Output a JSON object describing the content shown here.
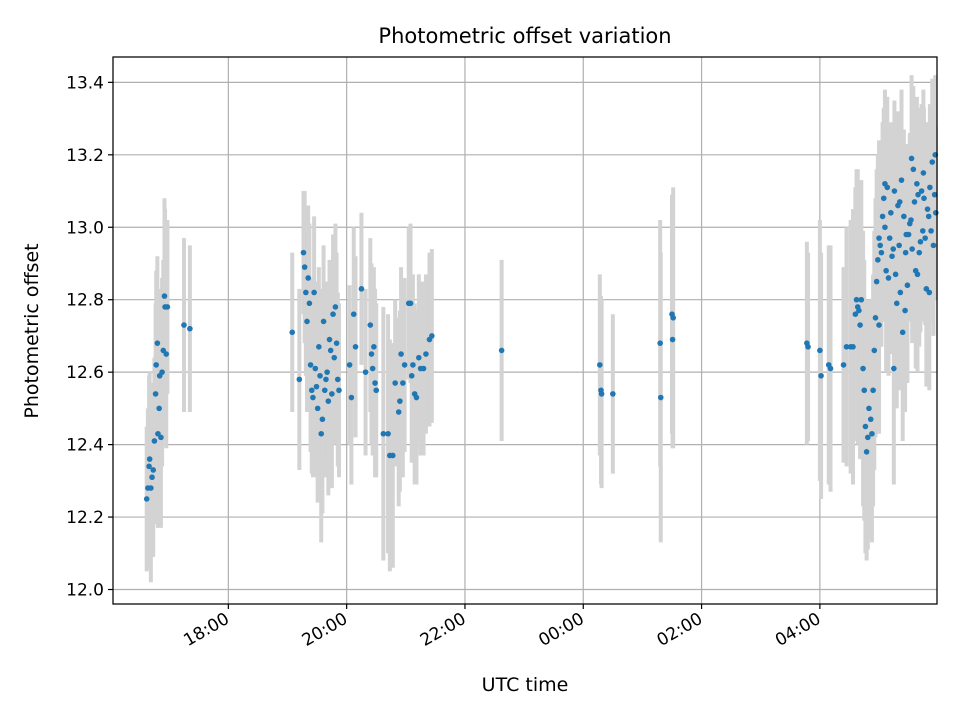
{
  "chart_data": {
    "type": "scatter",
    "title": "Photometric offset variation",
    "xlabel": "UTC time",
    "ylabel": "Photometric offset",
    "x_unit": "UTC hours (values after 24:00 continue into the next day)",
    "xlim": [
      16.05,
      29.98
    ],
    "ylim": [
      11.96,
      13.47
    ],
    "x_ticks": [
      {
        "value": 18,
        "label": "18:00"
      },
      {
        "value": 20,
        "label": "20:00"
      },
      {
        "value": 22,
        "label": "22:00"
      },
      {
        "value": 24,
        "label": "00:00"
      },
      {
        "value": 26,
        "label": "02:00"
      },
      {
        "value": 28,
        "label": "04:00"
      }
    ],
    "y_ticks": [
      {
        "value": 12.0,
        "label": "12.0"
      },
      {
        "value": 12.2,
        "label": "12.2"
      },
      {
        "value": 12.4,
        "label": "12.4"
      },
      {
        "value": 12.6,
        "label": "12.6"
      },
      {
        "value": 12.8,
        "label": "12.8"
      },
      {
        "value": 13.0,
        "label": "13.0"
      },
      {
        "value": 13.2,
        "label": "13.2"
      },
      {
        "value": 13.4,
        "label": "13.4"
      }
    ],
    "grid": true,
    "point_color": "#1f77b4",
    "errorbar_color": "#d3d3d3",
    "points": [
      {
        "x": 16.62,
        "y": 12.25,
        "err": 0.2
      },
      {
        "x": 16.64,
        "y": 12.28,
        "err": 0.22
      },
      {
        "x": 16.66,
        "y": 12.34,
        "err": 0.25
      },
      {
        "x": 16.67,
        "y": 12.36,
        "err": 0.24
      },
      {
        "x": 16.69,
        "y": 12.28,
        "err": 0.26
      },
      {
        "x": 16.71,
        "y": 12.31,
        "err": 0.22
      },
      {
        "x": 16.73,
        "y": 12.33,
        "err": 0.24
      },
      {
        "x": 16.75,
        "y": 12.41,
        "err": 0.23
      },
      {
        "x": 16.77,
        "y": 12.54,
        "err": 0.25
      },
      {
        "x": 16.78,
        "y": 12.62,
        "err": 0.26
      },
      {
        "x": 16.8,
        "y": 12.68,
        "err": 0.24
      },
      {
        "x": 16.81,
        "y": 12.43,
        "err": 0.26
      },
      {
        "x": 16.83,
        "y": 12.5,
        "err": 0.25
      },
      {
        "x": 16.84,
        "y": 12.59,
        "err": 0.24
      },
      {
        "x": 16.86,
        "y": 12.42,
        "err": 0.25
      },
      {
        "x": 16.88,
        "y": 12.6,
        "err": 0.26
      },
      {
        "x": 16.9,
        "y": 12.66,
        "err": 0.25
      },
      {
        "x": 16.92,
        "y": 12.81,
        "err": 0.27
      },
      {
        "x": 16.93,
        "y": 12.78,
        "err": 0.27
      },
      {
        "x": 16.95,
        "y": 12.65,
        "err": 0.26
      },
      {
        "x": 16.97,
        "y": 12.78,
        "err": 0.24
      },
      {
        "x": 17.25,
        "y": 12.73,
        "err": 0.24
      },
      {
        "x": 17.35,
        "y": 12.72,
        "err": 0.23
      },
      {
        "x": 19.08,
        "y": 12.71,
        "err": 0.22
      },
      {
        "x": 19.2,
        "y": 12.58,
        "err": 0.25
      },
      {
        "x": 19.27,
        "y": 12.93,
        "err": 0.17
      },
      {
        "x": 19.29,
        "y": 12.89,
        "err": 0.21
      },
      {
        "x": 19.31,
        "y": 12.82,
        "err": 0.23
      },
      {
        "x": 19.33,
        "y": 12.74,
        "err": 0.25
      },
      {
        "x": 19.35,
        "y": 12.86,
        "err": 0.2
      },
      {
        "x": 19.37,
        "y": 12.79,
        "err": 0.22
      },
      {
        "x": 19.39,
        "y": 12.62,
        "err": 0.24
      },
      {
        "x": 19.41,
        "y": 12.55,
        "err": 0.23
      },
      {
        "x": 19.43,
        "y": 12.53,
        "err": 0.22
      },
      {
        "x": 19.45,
        "y": 12.82,
        "err": 0.21
      },
      {
        "x": 19.47,
        "y": 12.61,
        "err": 0.24
      },
      {
        "x": 19.49,
        "y": 12.56,
        "err": 0.25
      },
      {
        "x": 19.51,
        "y": 12.5,
        "err": 0.26
      },
      {
        "x": 19.53,
        "y": 12.67,
        "err": 0.22
      },
      {
        "x": 19.55,
        "y": 12.59,
        "err": 0.24
      },
      {
        "x": 19.57,
        "y": 12.43,
        "err": 0.3
      },
      {
        "x": 19.59,
        "y": 12.47,
        "err": 0.26
      },
      {
        "x": 19.61,
        "y": 12.74,
        "err": 0.21
      },
      {
        "x": 19.63,
        "y": 12.55,
        "err": 0.24
      },
      {
        "x": 19.65,
        "y": 12.58,
        "err": 0.23
      },
      {
        "x": 19.67,
        "y": 12.6,
        "err": 0.25
      },
      {
        "x": 19.69,
        "y": 12.52,
        "err": 0.26
      },
      {
        "x": 19.71,
        "y": 12.69,
        "err": 0.22
      },
      {
        "x": 19.73,
        "y": 12.66,
        "err": 0.24
      },
      {
        "x": 19.75,
        "y": 12.54,
        "err": 0.26
      },
      {
        "x": 19.77,
        "y": 12.76,
        "err": 0.22
      },
      {
        "x": 19.79,
        "y": 12.64,
        "err": 0.24
      },
      {
        "x": 19.81,
        "y": 12.78,
        "err": 0.23
      },
      {
        "x": 19.83,
        "y": 12.68,
        "err": 0.25
      },
      {
        "x": 19.85,
        "y": 12.58,
        "err": 0.24
      },
      {
        "x": 19.87,
        "y": 12.55,
        "err": 0.24
      },
      {
        "x": 20.05,
        "y": 12.62,
        "err": 0.22
      },
      {
        "x": 20.08,
        "y": 12.53,
        "err": 0.24
      },
      {
        "x": 20.12,
        "y": 12.76,
        "err": 0.24
      },
      {
        "x": 20.15,
        "y": 12.67,
        "err": 0.25
      },
      {
        "x": 20.25,
        "y": 12.83,
        "err": 0.21
      },
      {
        "x": 20.32,
        "y": 12.6,
        "err": 0.23
      },
      {
        "x": 20.4,
        "y": 12.73,
        "err": 0.24
      },
      {
        "x": 20.42,
        "y": 12.65,
        "err": 0.25
      },
      {
        "x": 20.44,
        "y": 12.61,
        "err": 0.24
      },
      {
        "x": 20.46,
        "y": 12.67,
        "err": 0.22
      },
      {
        "x": 20.48,
        "y": 12.57,
        "err": 0.26
      },
      {
        "x": 20.5,
        "y": 12.55,
        "err": 0.24
      },
      {
        "x": 20.62,
        "y": 12.43,
        "err": 0.35
      },
      {
        "x": 20.7,
        "y": 12.43,
        "err": 0.33
      },
      {
        "x": 20.73,
        "y": 12.37,
        "err": 0.32
      },
      {
        "x": 20.78,
        "y": 12.37,
        "err": 0.31
      },
      {
        "x": 20.82,
        "y": 12.57,
        "err": 0.23
      },
      {
        "x": 20.88,
        "y": 12.49,
        "err": 0.26
      },
      {
        "x": 20.9,
        "y": 12.52,
        "err": 0.25
      },
      {
        "x": 20.92,
        "y": 12.65,
        "err": 0.24
      },
      {
        "x": 20.95,
        "y": 12.57,
        "err": 0.26
      },
      {
        "x": 20.98,
        "y": 12.62,
        "err": 0.24
      },
      {
        "x": 21.05,
        "y": 12.79,
        "err": 0.21
      },
      {
        "x": 21.08,
        "y": 12.79,
        "err": 0.22
      },
      {
        "x": 21.1,
        "y": 12.59,
        "err": 0.24
      },
      {
        "x": 21.12,
        "y": 12.62,
        "err": 0.25
      },
      {
        "x": 21.15,
        "y": 12.54,
        "err": 0.25
      },
      {
        "x": 21.18,
        "y": 12.53,
        "err": 0.24
      },
      {
        "x": 21.22,
        "y": 12.64,
        "err": 0.23
      },
      {
        "x": 21.25,
        "y": 12.61,
        "err": 0.24
      },
      {
        "x": 21.3,
        "y": 12.61,
        "err": 0.24
      },
      {
        "x": 21.34,
        "y": 12.65,
        "err": 0.22
      },
      {
        "x": 21.4,
        "y": 12.69,
        "err": 0.24
      },
      {
        "x": 21.44,
        "y": 12.7,
        "err": 0.24
      },
      {
        "x": 22.62,
        "y": 12.66,
        "err": 0.25
      },
      {
        "x": 24.28,
        "y": 12.62,
        "err": 0.25
      },
      {
        "x": 24.3,
        "y": 12.55,
        "err": 0.26
      },
      {
        "x": 24.31,
        "y": 12.54,
        "err": 0.26
      },
      {
        "x": 24.5,
        "y": 12.54,
        "err": 0.22
      },
      {
        "x": 25.3,
        "y": 12.68,
        "err": 0.34
      },
      {
        "x": 25.31,
        "y": 12.53,
        "err": 0.4
      },
      {
        "x": 25.5,
        "y": 12.76,
        "err": 0.33
      },
      {
        "x": 25.51,
        "y": 12.69,
        "err": 0.3
      },
      {
        "x": 25.52,
        "y": 12.75,
        "err": 0.36
      },
      {
        "x": 27.78,
        "y": 12.68,
        "err": 0.28
      },
      {
        "x": 27.8,
        "y": 12.67,
        "err": 0.26
      },
      {
        "x": 28.0,
        "y": 12.66,
        "err": 0.36
      },
      {
        "x": 28.02,
        "y": 12.59,
        "err": 0.34
      },
      {
        "x": 28.15,
        "y": 12.62,
        "err": 0.33
      },
      {
        "x": 28.18,
        "y": 12.61,
        "err": 0.34
      },
      {
        "x": 28.4,
        "y": 12.62,
        "err": 0.27
      },
      {
        "x": 28.45,
        "y": 12.67,
        "err": 0.33
      },
      {
        "x": 28.52,
        "y": 12.67,
        "err": 0.35
      },
      {
        "x": 28.56,
        "y": 12.67,
        "err": 0.38
      },
      {
        "x": 28.6,
        "y": 12.76,
        "err": 0.35
      },
      {
        "x": 28.62,
        "y": 12.8,
        "err": 0.36
      },
      {
        "x": 28.64,
        "y": 12.78,
        "err": 0.38
      },
      {
        "x": 28.66,
        "y": 12.77,
        "err": 0.35
      },
      {
        "x": 28.68,
        "y": 12.73,
        "err": 0.37
      },
      {
        "x": 28.7,
        "y": 12.8,
        "err": 0.33
      },
      {
        "x": 28.73,
        "y": 12.61,
        "err": 0.38
      },
      {
        "x": 28.75,
        "y": 12.55,
        "err": 0.36
      },
      {
        "x": 28.77,
        "y": 12.45,
        "err": 0.35
      },
      {
        "x": 28.79,
        "y": 12.38,
        "err": 0.3
      },
      {
        "x": 28.81,
        "y": 12.42,
        "err": 0.31
      },
      {
        "x": 28.83,
        "y": 12.5,
        "err": 0.3
      },
      {
        "x": 28.86,
        "y": 12.47,
        "err": 0.33
      },
      {
        "x": 28.88,
        "y": 12.43,
        "err": 0.3
      },
      {
        "x": 28.9,
        "y": 12.55,
        "err": 0.32
      },
      {
        "x": 28.92,
        "y": 12.66,
        "err": 0.33
      },
      {
        "x": 28.94,
        "y": 12.75,
        "err": 0.33
      },
      {
        "x": 28.96,
        "y": 12.85,
        "err": 0.31
      },
      {
        "x": 28.98,
        "y": 12.91,
        "err": 0.29
      },
      {
        "x": 29.0,
        "y": 12.97,
        "err": 0.27
      },
      {
        "x": 29.02,
        "y": 12.95,
        "err": 0.28
      },
      {
        "x": 29.04,
        "y": 12.93,
        "err": 0.26
      },
      {
        "x": 29.06,
        "y": 13.03,
        "err": 0.26
      },
      {
        "x": 29.08,
        "y": 13.08,
        "err": 0.25
      },
      {
        "x": 29.1,
        "y": 13.0,
        "err": 0.26
      },
      {
        "x": 29.12,
        "y": 12.88,
        "err": 0.28
      },
      {
        "x": 29.14,
        "y": 13.11,
        "err": 0.25
      },
      {
        "x": 29.16,
        "y": 12.86,
        "err": 0.27
      },
      {
        "x": 29.18,
        "y": 12.97,
        "err": 0.26
      },
      {
        "x": 29.2,
        "y": 13.04,
        "err": 0.25
      },
      {
        "x": 29.22,
        "y": 12.92,
        "err": 0.27
      },
      {
        "x": 29.24,
        "y": 12.94,
        "err": 0.26
      },
      {
        "x": 29.26,
        "y": 13.1,
        "err": 0.25
      },
      {
        "x": 29.28,
        "y": 12.87,
        "err": 0.28
      },
      {
        "x": 29.3,
        "y": 12.79,
        "err": 0.29
      },
      {
        "x": 29.32,
        "y": 13.06,
        "err": 0.26
      },
      {
        "x": 29.34,
        "y": 12.95,
        "err": 0.25
      },
      {
        "x": 29.36,
        "y": 12.82,
        "err": 0.27
      },
      {
        "x": 29.38,
        "y": 13.13,
        "err": 0.25
      },
      {
        "x": 29.4,
        "y": 12.71,
        "err": 0.3
      },
      {
        "x": 29.42,
        "y": 13.03,
        "err": 0.24
      },
      {
        "x": 29.44,
        "y": 12.77,
        "err": 0.28
      },
      {
        "x": 29.46,
        "y": 12.98,
        "err": 0.25
      },
      {
        "x": 29.48,
        "y": 12.84,
        "err": 0.27
      },
      {
        "x": 29.5,
        "y": 12.98,
        "err": 0.24
      },
      {
        "x": 29.52,
        "y": 13.01,
        "err": 0.25
      },
      {
        "x": 29.54,
        "y": 13.02,
        "err": 0.24
      },
      {
        "x": 29.56,
        "y": 12.94,
        "err": 0.26
      },
      {
        "x": 29.58,
        "y": 13.16,
        "err": 0.23
      },
      {
        "x": 29.6,
        "y": 13.07,
        "err": 0.25
      },
      {
        "x": 29.62,
        "y": 12.88,
        "err": 0.27
      },
      {
        "x": 29.64,
        "y": 13.12,
        "err": 0.24
      },
      {
        "x": 29.66,
        "y": 13.09,
        "err": 0.24
      },
      {
        "x": 29.68,
        "y": 12.93,
        "err": 0.26
      },
      {
        "x": 29.7,
        "y": 12.96,
        "err": 0.25
      },
      {
        "x": 29.72,
        "y": 13.1,
        "err": 0.24
      },
      {
        "x": 29.74,
        "y": 12.99,
        "err": 0.25
      },
      {
        "x": 29.76,
        "y": 13.08,
        "err": 0.25
      },
      {
        "x": 29.78,
        "y": 12.97,
        "err": 0.24
      },
      {
        "x": 29.8,
        "y": 12.83,
        "err": 0.27
      },
      {
        "x": 29.82,
        "y": 13.05,
        "err": 0.24
      },
      {
        "x": 29.84,
        "y": 13.03,
        "err": 0.24
      },
      {
        "x": 29.86,
        "y": 13.11,
        "err": 0.23
      },
      {
        "x": 29.88,
        "y": 12.99,
        "err": 0.25
      },
      {
        "x": 29.9,
        "y": 13.18,
        "err": 0.23
      },
      {
        "x": 29.92,
        "y": 12.95,
        "err": 0.25
      },
      {
        "x": 29.94,
        "y": 13.09,
        "err": 0.24
      },
      {
        "x": 29.96,
        "y": 13.04,
        "err": 0.24
      },
      {
        "x": 29.0,
        "y": 12.73,
        "err": 0.3
      },
      {
        "x": 29.1,
        "y": 13.12,
        "err": 0.26
      },
      {
        "x": 29.25,
        "y": 12.61,
        "err": 0.32
      },
      {
        "x": 29.35,
        "y": 13.07,
        "err": 0.25
      },
      {
        "x": 29.45,
        "y": 12.93,
        "err": 0.27
      },
      {
        "x": 29.55,
        "y": 13.19,
        "err": 0.23
      },
      {
        "x": 29.65,
        "y": 12.87,
        "err": 0.27
      },
      {
        "x": 29.75,
        "y": 13.15,
        "err": 0.23
      },
      {
        "x": 29.85,
        "y": 12.82,
        "err": 0.27
      },
      {
        "x": 29.95,
        "y": 13.2,
        "err": 0.22
      }
    ]
  }
}
